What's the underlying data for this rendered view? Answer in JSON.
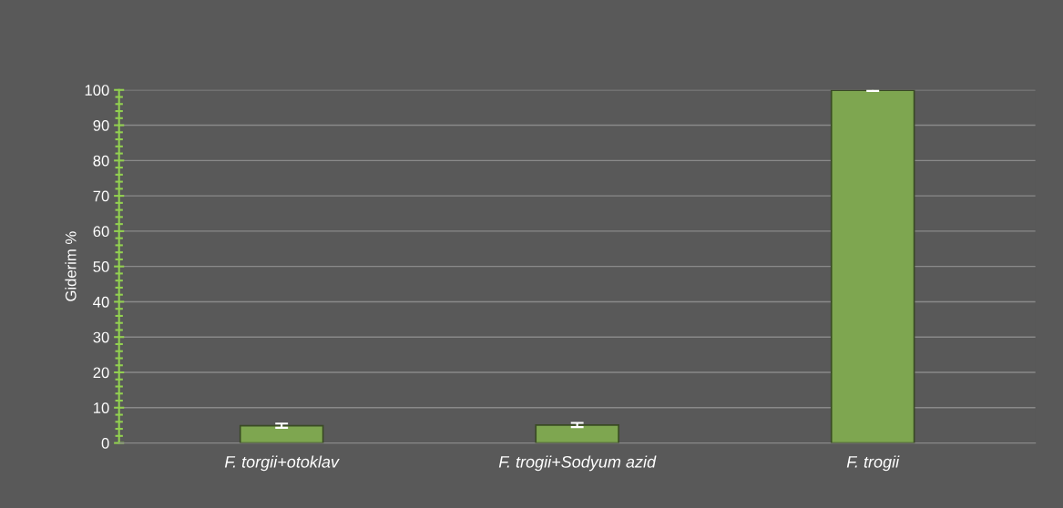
{
  "chart_data": {
    "type": "bar",
    "ylabel": "Giderim %",
    "categories": [
      "F. torgii+otoklav",
      "F. trogii+Sodyum azid",
      "F. trogii"
    ],
    "values": [
      4.9,
      5.1,
      99.9
    ],
    "errors": [
      0.6,
      0.6,
      0.2
    ],
    "color": "#7ea650",
    "ylim": [
      0,
      100
    ],
    "yticks": [
      0,
      10,
      20,
      30,
      40,
      50,
      60,
      70,
      80,
      90,
      100
    ],
    "grid": "y"
  }
}
